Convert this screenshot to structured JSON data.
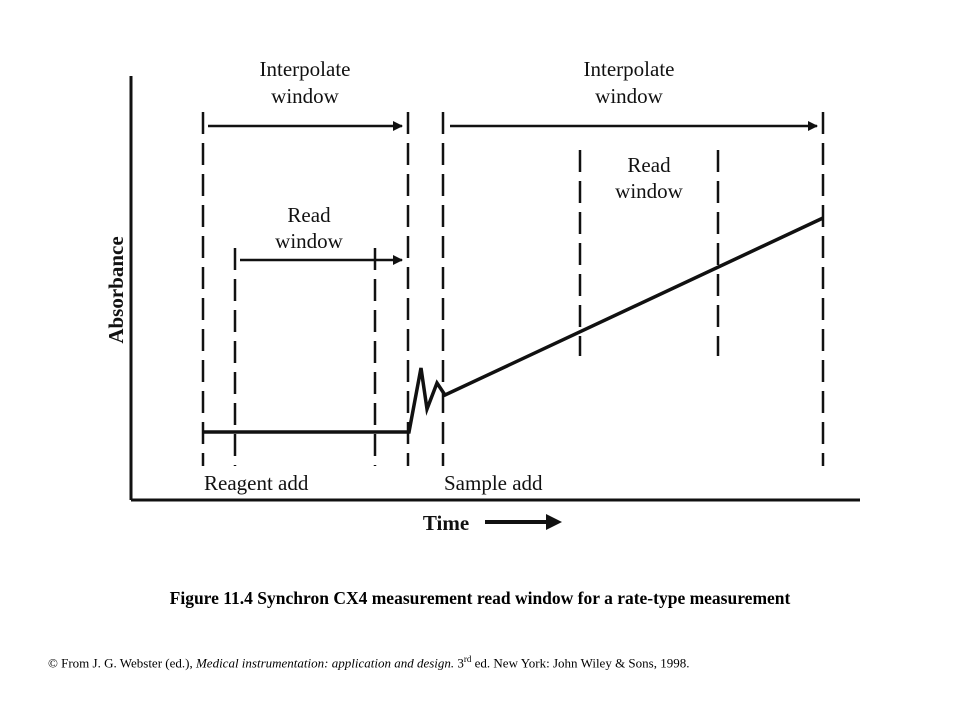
{
  "diagram": {
    "y_axis_label": "Absorbance",
    "x_axis_label": "Time",
    "interpolate_window_left": [
      "Interpolate",
      "window"
    ],
    "interpolate_window_right": [
      "Interpolate",
      "window"
    ],
    "read_window_left": [
      "Read",
      "window"
    ],
    "read_window_right": [
      "Read",
      "window"
    ],
    "reagent_add_label": "Reagent add",
    "sample_add_label": "Sample add"
  },
  "caption": "Figure 11.4  Synchron CX4 measurement  read window for a rate-type measurement",
  "credit": {
    "prefix": "© From J. G. Webster (ed.),",
    "title": "Medical instrumentation: application and design.",
    "edition_number": "3",
    "edition_suffix": "rd",
    "rest": "ed. New York: John Wiley & Sons, 1998."
  }
}
